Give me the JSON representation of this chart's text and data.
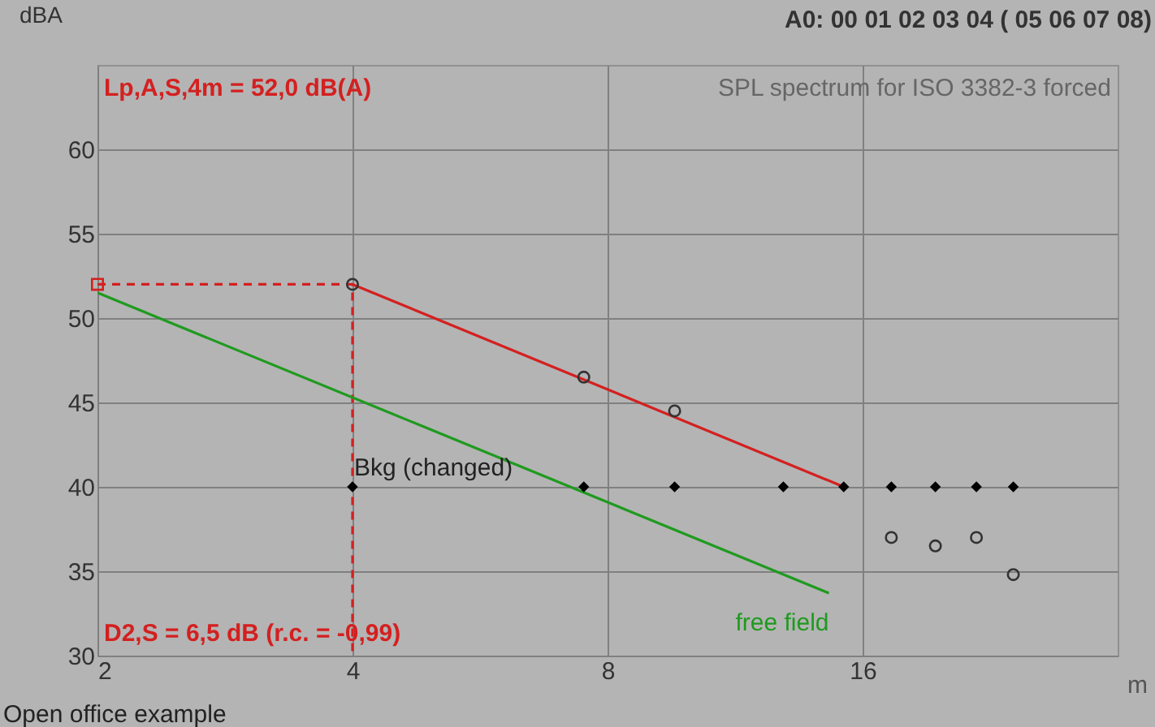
{
  "chart_data": {
    "type": "scatter",
    "title": "A0:  00 01 02 03 04 ( 05 06 07 08)",
    "subtitle": "SPL spectrum for ISO 3382-3 forced",
    "xlabel": "m",
    "ylabel": "dBA",
    "log": "x",
    "xlim": [
      2,
      32
    ],
    "xticks": [
      2,
      4,
      8,
      16
    ],
    "ylim": [
      30,
      65
    ],
    "yticks": [
      30,
      35,
      40,
      45,
      50,
      55,
      60
    ],
    "grid": true,
    "series": [
      {
        "type": "line",
        "color": "#d42020",
        "line_style": "dashed",
        "marker": "none",
        "x": [
          2,
          4,
          4
        ],
        "values": [
          52,
          52,
          30
        ]
      },
      {
        "color": "#d42020",
        "marker": "square",
        "x": [
          2
        ],
        "values": [
          52
        ]
      },
      {
        "type": "line",
        "color": "#d42020",
        "line_style": "solid",
        "marker": "none",
        "x": [
          4,
          15.2
        ],
        "values": [
          52,
          40
        ]
      },
      {
        "name": "free field",
        "type": "line",
        "color": "#1f9a1f",
        "line_style": "solid",
        "marker": "none",
        "x": [
          2,
          14.6
        ],
        "values": [
          51.5,
          33.7
        ]
      },
      {
        "color": "#333333",
        "marker": "circle",
        "x": [
          4,
          7.5,
          9.6,
          17.3,
          19.5,
          21.8,
          24.1
        ],
        "values": [
          52,
          46.5,
          44.5,
          37,
          36.5,
          37,
          34.8
        ]
      },
      {
        "color": "#000000",
        "marker": "diamond",
        "x": [
          4,
          7.5,
          9.6,
          12.9,
          15.2,
          17.3,
          19.5,
          21.8,
          24.1
        ],
        "values": [
          40,
          40,
          40,
          40,
          40,
          40,
          40,
          40,
          40
        ]
      }
    ],
    "annotations": [
      "Lp,A,S,4m = 52,0 dB(A)",
      "D2,S = 6,5 dB (r.c. = -0,99)",
      {
        "text": "Bkg (changed)",
        "x": 4,
        "y": 40
      },
      "Open office example"
    ]
  }
}
